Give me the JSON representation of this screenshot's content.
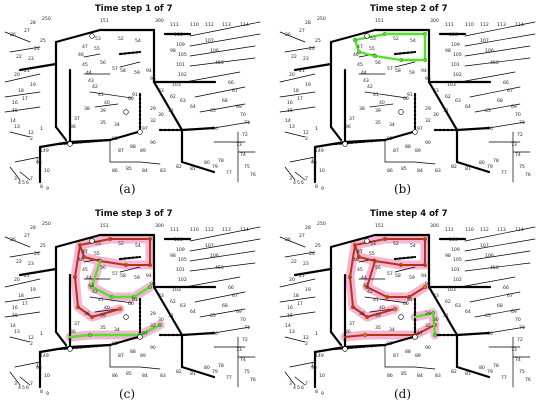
{
  "figure": {
    "panels": [
      {
        "key": "a",
        "title": "Time step 1 of 7",
        "caption": "(a)",
        "restored_green": [],
        "restored_red": [],
        "pink_glow": false
      },
      {
        "key": "b",
        "title": "Time step 2 of 7",
        "caption": "(b)",
        "restored_green": [
          "top_loop"
        ],
        "restored_red": [],
        "pink_glow": false
      },
      {
        "key": "c",
        "title": "Time step 3 of 7",
        "caption": "(c)",
        "restored_green": [
          "mid_loop",
          "lower_branch"
        ],
        "restored_red": [
          "top_loop",
          "left_branch"
        ],
        "pink_glow": true
      },
      {
        "key": "d",
        "title": "Time step 4 of 7",
        "caption": "(d)",
        "restored_green": [
          "lower_small"
        ],
        "restored_red": [
          "top_loop",
          "left_branch",
          "mid_loop",
          "lower_branch"
        ],
        "pink_glow": true
      }
    ],
    "colors": {
      "line": "#000000",
      "green": "#55e02a",
      "red": "#b8321a",
      "pink": "#f3b7d6",
      "switch_open": "#ffffff",
      "marker": "#c8861a"
    },
    "node_labels": [
      "250",
      "151",
      "300",
      "111",
      "110",
      "112",
      "113",
      "114",
      "108",
      "109",
      "105",
      "107",
      "106",
      "101",
      "102",
      "103",
      "450",
      "53",
      "52",
      "54",
      "55",
      "56",
      "57",
      "58",
      "59",
      "60",
      "47",
      "46",
      "45",
      "44",
      "43",
      "42",
      "41",
      "40",
      "39",
      "38",
      "37",
      "36",
      "35",
      "34",
      "149",
      "1",
      "2",
      "3",
      "4",
      "5",
      "6",
      "7",
      "8",
      "9",
      "10",
      "11",
      "12",
      "13",
      "14",
      "15",
      "16",
      "17",
      "18",
      "19",
      "20",
      "21",
      "22",
      "23",
      "24",
      "25",
      "26",
      "27",
      "28",
      "29",
      "30",
      "31",
      "32",
      "33",
      "62",
      "63",
      "64",
      "65",
      "66",
      "67",
      "68",
      "69",
      "70",
      "71",
      "72",
      "73",
      "74",
      "75",
      "76",
      "77",
      "78",
      "79",
      "80",
      "81",
      "82",
      "83",
      "84",
      "85",
      "86",
      "87",
      "88",
      "89",
      "90",
      "91",
      "92",
      "93",
      "94",
      "95",
      "96",
      "97",
      "98",
      "99",
      "100",
      "135",
      "152",
      "160",
      "195",
      "197",
      "610",
      "2054",
      "3000"
    ]
  }
}
